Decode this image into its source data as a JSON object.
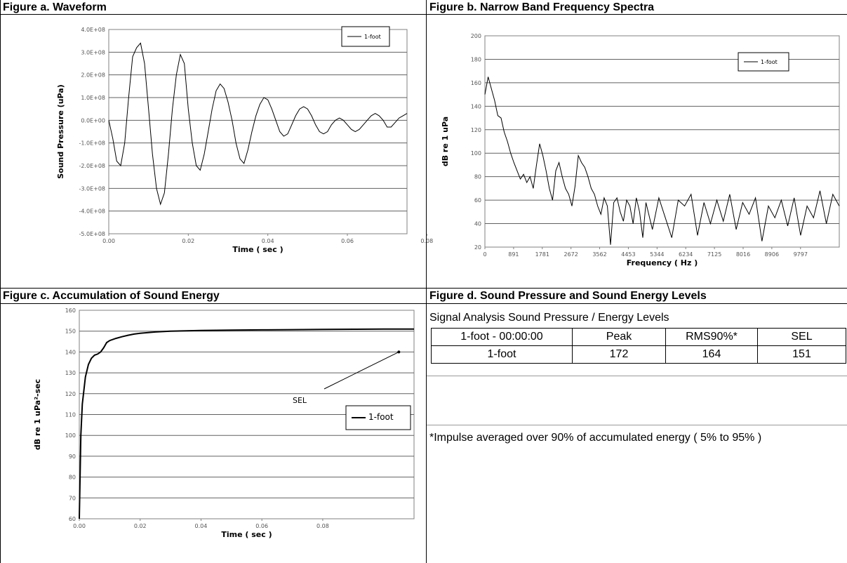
{
  "panels": {
    "a": {
      "title": "Figure a. Waveform"
    },
    "b": {
      "title": "Figure b. Narrow Band Frequency Spectra"
    },
    "c": {
      "title": "Figure c. Accumulation of Sound Energy"
    },
    "d": {
      "title": "Figure d. Sound Pressure and Sound Energy Levels"
    }
  },
  "table": {
    "caption": "Signal Analysis Sound Pressure / Energy Levels",
    "header": [
      "1-foot - 00:00:00",
      "Peak",
      "RMS90%*",
      "SEL"
    ],
    "row": [
      "1-foot",
      "172",
      "164",
      "151"
    ],
    "footnote": "*Impulse averaged over 90% of accumulated energy ( 5% to 95% )"
  },
  "chart_data": [
    {
      "id": "a",
      "type": "line",
      "title": "Figure a. Waveform",
      "xlabel": "Time ( sec )",
      "ylabel": "Sound Pressure (uPa)",
      "xlim": [
        0,
        0.075
      ],
      "ylim": [
        -500000000,
        400000000
      ],
      "x_ticks": [
        "0.00",
        "0.02",
        "0.04",
        "0.06",
        "0.08"
      ],
      "y_ticks": [
        "4.0E+08",
        "3.0E+08",
        "2.0E+08",
        "1.0E+08",
        "0.0E+00",
        "-1.0E+08",
        "-2.0E+08",
        "-3.0E+08",
        "-4.0E+08",
        "-5.0E+08"
      ],
      "grid": "horizontal",
      "legend": "top-right",
      "series": [
        {
          "name": "1-foot",
          "x": [
            0,
            0.001,
            0.002,
            0.003,
            0.004,
            0.005,
            0.006,
            0.007,
            0.008,
            0.009,
            0.01,
            0.011,
            0.012,
            0.013,
            0.014,
            0.015,
            0.016,
            0.017,
            0.018,
            0.019,
            0.02,
            0.021,
            0.022,
            0.023,
            0.024,
            0.025,
            0.026,
            0.027,
            0.028,
            0.029,
            0.03,
            0.031,
            0.032,
            0.033,
            0.034,
            0.035,
            0.036,
            0.037,
            0.038,
            0.039,
            0.04,
            0.041,
            0.042,
            0.043,
            0.044,
            0.045,
            0.046,
            0.047,
            0.048,
            0.049,
            0.05,
            0.051,
            0.052,
            0.053,
            0.054,
            0.055,
            0.056,
            0.057,
            0.058,
            0.059,
            0.06,
            0.061,
            0.062,
            0.063,
            0.064,
            0.065,
            0.066,
            0.067,
            0.068,
            0.069,
            0.07,
            0.071,
            0.072,
            0.073,
            0.074,
            0.075
          ],
          "y": [
            0,
            -80000000,
            -180000000,
            -200000000,
            -100000000,
            100000000,
            280000000,
            320000000,
            340000000,
            250000000,
            50000000,
            -150000000,
            -300000000,
            -370000000,
            -320000000,
            -150000000,
            50000000,
            200000000,
            290000000,
            250000000,
            50000000,
            -100000000,
            -200000000,
            -220000000,
            -150000000,
            -50000000,
            50000000,
            130000000,
            160000000,
            140000000,
            80000000,
            0,
            -100000000,
            -170000000,
            -190000000,
            -130000000,
            -50000000,
            20000000,
            70000000,
            100000000,
            90000000,
            50000000,
            0,
            -50000000,
            -70000000,
            -60000000,
            -20000000,
            20000000,
            50000000,
            60000000,
            50000000,
            20000000,
            -20000000,
            -50000000,
            -60000000,
            -50000000,
            -20000000,
            0,
            10000000,
            0,
            -20000000,
            -40000000,
            -50000000,
            -40000000,
            -20000000,
            0,
            20000000,
            30000000,
            20000000,
            0,
            -30000000,
            -30000000,
            -10000000,
            10000000,
            20000000,
            30000000
          ]
        }
      ]
    },
    {
      "id": "b",
      "type": "line",
      "title": "Figure b. Narrow Band Frequency Spectra",
      "xlabel": "Frequency ( Hz )",
      "ylabel": "dB re 1 uPa",
      "xlim": [
        0,
        11000
      ],
      "ylim": [
        20,
        200
      ],
      "x_ticks": [
        "0",
        "891",
        "1781",
        "2672",
        "3562",
        "4453",
        "5344",
        "6234",
        "7125",
        "8016",
        "8906",
        "9797"
      ],
      "y_ticks": [
        "200",
        "180",
        "160",
        "140",
        "120",
        "100",
        "80",
        "60",
        "40",
        "20"
      ],
      "grid": "horizontal",
      "legend": "top-right",
      "series": [
        {
          "name": "1-foot",
          "x": [
            0,
            100,
            200,
            300,
            400,
            500,
            600,
            700,
            800,
            900,
            1000,
            1100,
            1200,
            1300,
            1400,
            1500,
            1600,
            1700,
            1800,
            1900,
            2000,
            2100,
            2200,
            2300,
            2400,
            2500,
            2600,
            2700,
            2800,
            2900,
            3000,
            3100,
            3200,
            3300,
            3400,
            3500,
            3600,
            3700,
            3800,
            3900,
            4000,
            4100,
            4200,
            4300,
            4400,
            4500,
            4600,
            4700,
            4800,
            4900,
            5000,
            5200,
            5400,
            5600,
            5800,
            6000,
            6200,
            6400,
            6600,
            6800,
            7000,
            7200,
            7400,
            7600,
            7800,
            8000,
            8200,
            8400,
            8600,
            8800,
            9000,
            9200,
            9400,
            9600,
            9800,
            10000,
            10200,
            10400,
            10600,
            10800,
            11000
          ],
          "y": [
            150,
            165,
            155,
            145,
            132,
            130,
            118,
            110,
            100,
            92,
            85,
            78,
            82,
            75,
            80,
            70,
            90,
            108,
            98,
            85,
            70,
            60,
            85,
            92,
            80,
            70,
            65,
            55,
            72,
            98,
            92,
            88,
            80,
            70,
            65,
            55,
            48,
            62,
            55,
            22,
            58,
            62,
            50,
            42,
            60,
            55,
            40,
            62,
            50,
            28,
            58,
            35,
            62,
            45,
            28,
            60,
            55,
            65,
            30,
            58,
            40,
            60,
            42,
            65,
            35,
            58,
            48,
            62,
            25,
            55,
            45,
            60,
            38,
            62,
            30,
            55,
            45,
            68,
            40,
            65,
            55
          ]
        }
      ]
    },
    {
      "id": "c",
      "type": "line",
      "title": "Figure c. Accumulation of Sound Energy",
      "xlabel": "Time ( sec )",
      "ylabel": "dB re 1 uPa²-sec",
      "xlim": [
        0,
        0.11
      ],
      "ylim": [
        60,
        160
      ],
      "x_ticks": [
        "0.00",
        "0.02",
        "0.04",
        "0.06",
        "0.08"
      ],
      "y_ticks": [
        "160",
        "150",
        "140",
        "130",
        "120",
        "110",
        "100",
        "90",
        "80",
        "70",
        "60"
      ],
      "grid": "horizontal",
      "legend": "center-right",
      "annotation": {
        "text": "SEL",
        "x": 0.105,
        "y": 140
      },
      "series": [
        {
          "name": "1-foot",
          "x": [
            0,
            0.0005,
            0.001,
            0.002,
            0.003,
            0.004,
            0.005,
            0.006,
            0.007,
            0.008,
            0.009,
            0.01,
            0.012,
            0.014,
            0.016,
            0.018,
            0.02,
            0.025,
            0.03,
            0.04,
            0.05,
            0.06,
            0.07,
            0.08,
            0.09,
            0.1,
            0.11
          ],
          "y": [
            60,
            100,
            115,
            128,
            134,
            137,
            138.5,
            139,
            140,
            142,
            144.5,
            145.5,
            146.5,
            147.3,
            148,
            148.6,
            149,
            149.6,
            150,
            150.3,
            150.5,
            150.6,
            150.7,
            150.8,
            150.9,
            151,
            151
          ]
        }
      ]
    }
  ]
}
